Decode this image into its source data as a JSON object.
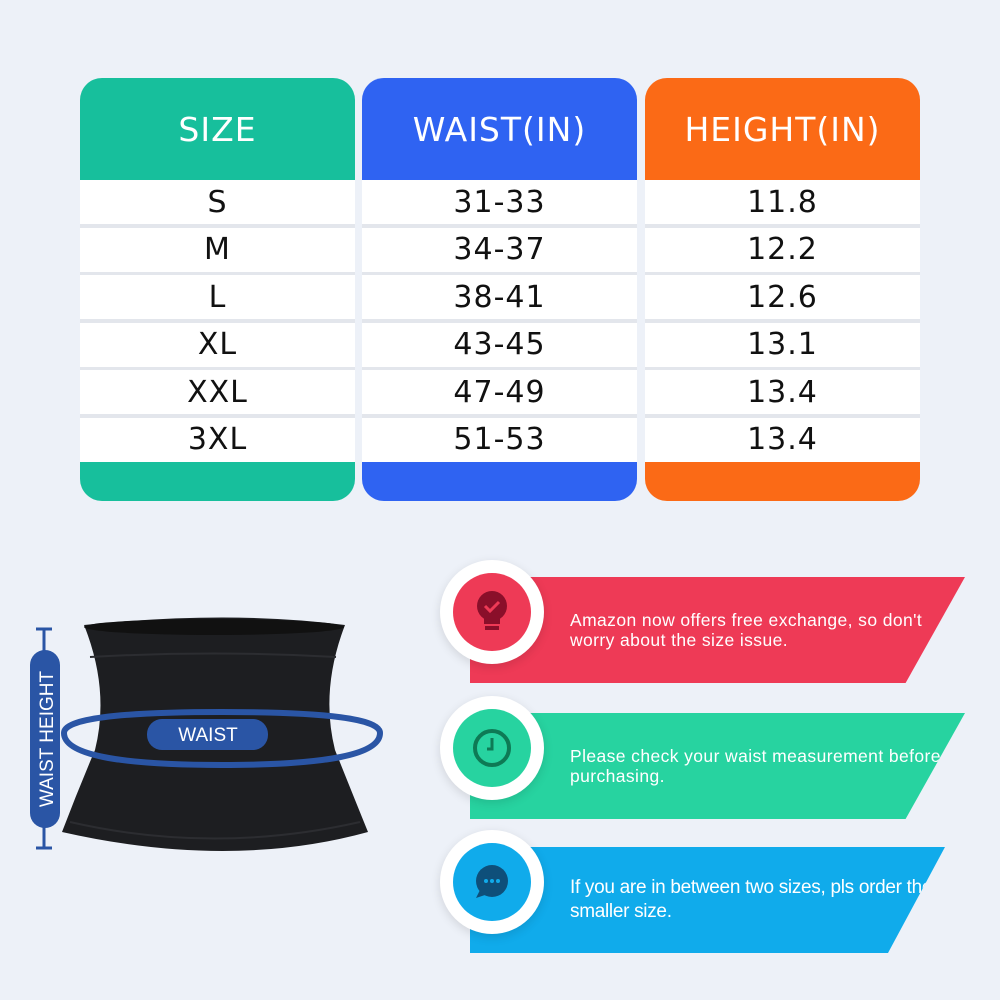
{
  "table": {
    "columns": [
      {
        "header": "SIZE",
        "color": "#17bf9c"
      },
      {
        "header": "WAIST(IN)",
        "color": "#2f63f2"
      },
      {
        "header": "HEIGHT(IN)",
        "color": "#fb6a16"
      }
    ],
    "rows": [
      [
        "S",
        "31-33",
        "11.8"
      ],
      [
        "M",
        "34-37",
        "12.2"
      ],
      [
        "L",
        "38-41",
        "12.6"
      ],
      [
        "XL",
        "43-45",
        "13.1"
      ],
      [
        "XXL",
        "47-49",
        "13.4"
      ],
      [
        "3XL",
        "51-53",
        "13.4"
      ]
    ]
  },
  "product": {
    "waist_label": "WAIST",
    "height_label": "WAIST HEIGHT",
    "accent": "#2a55a5"
  },
  "tips": [
    {
      "text": "Amazon now offers free exchange, so don't worry about the size issue.",
      "icon": "lightbulb-check-icon",
      "color": "#ee3a56"
    },
    {
      "text": "Please check your waist measurement before purchasing.",
      "icon": "clock-icon",
      "color": "#27d3a0"
    },
    {
      "text": "If you are in between two sizes, pls order the smaller size.",
      "icon": "chat-bubble-icon",
      "color": "#10abeb"
    }
  ]
}
